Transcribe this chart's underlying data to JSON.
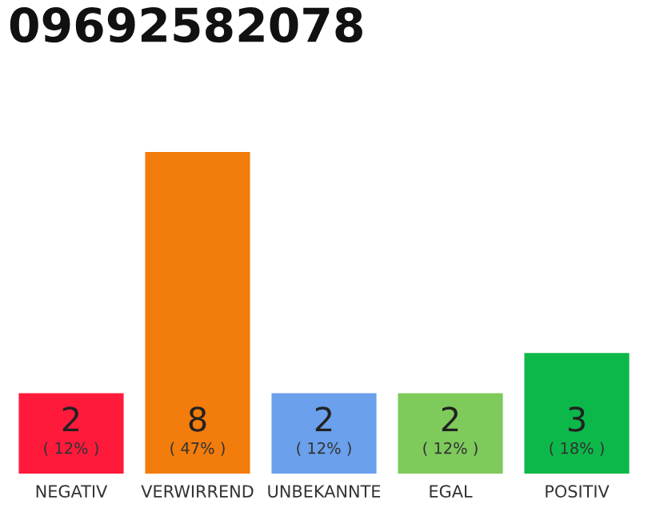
{
  "chart_data": {
    "type": "bar",
    "title": "09692582078",
    "categories": [
      "NEGATIV",
      "VERWIRREND",
      "UNBEKANNTE",
      "EGAL",
      "POSITIV"
    ],
    "values": [
      2,
      8,
      2,
      2,
      3
    ],
    "colors": [
      "#ff1a3c",
      "#f27c0c",
      "#6aa0ec",
      "#7ecb5c",
      "#0db84a"
    ],
    "value_labels": [
      "2\n( 12% )",
      "8\n( 47% )",
      "2\n( 12% )",
      "2\n( 12% )",
      "3\n( 18% )"
    ],
    "grid": false,
    "legend": false
  }
}
